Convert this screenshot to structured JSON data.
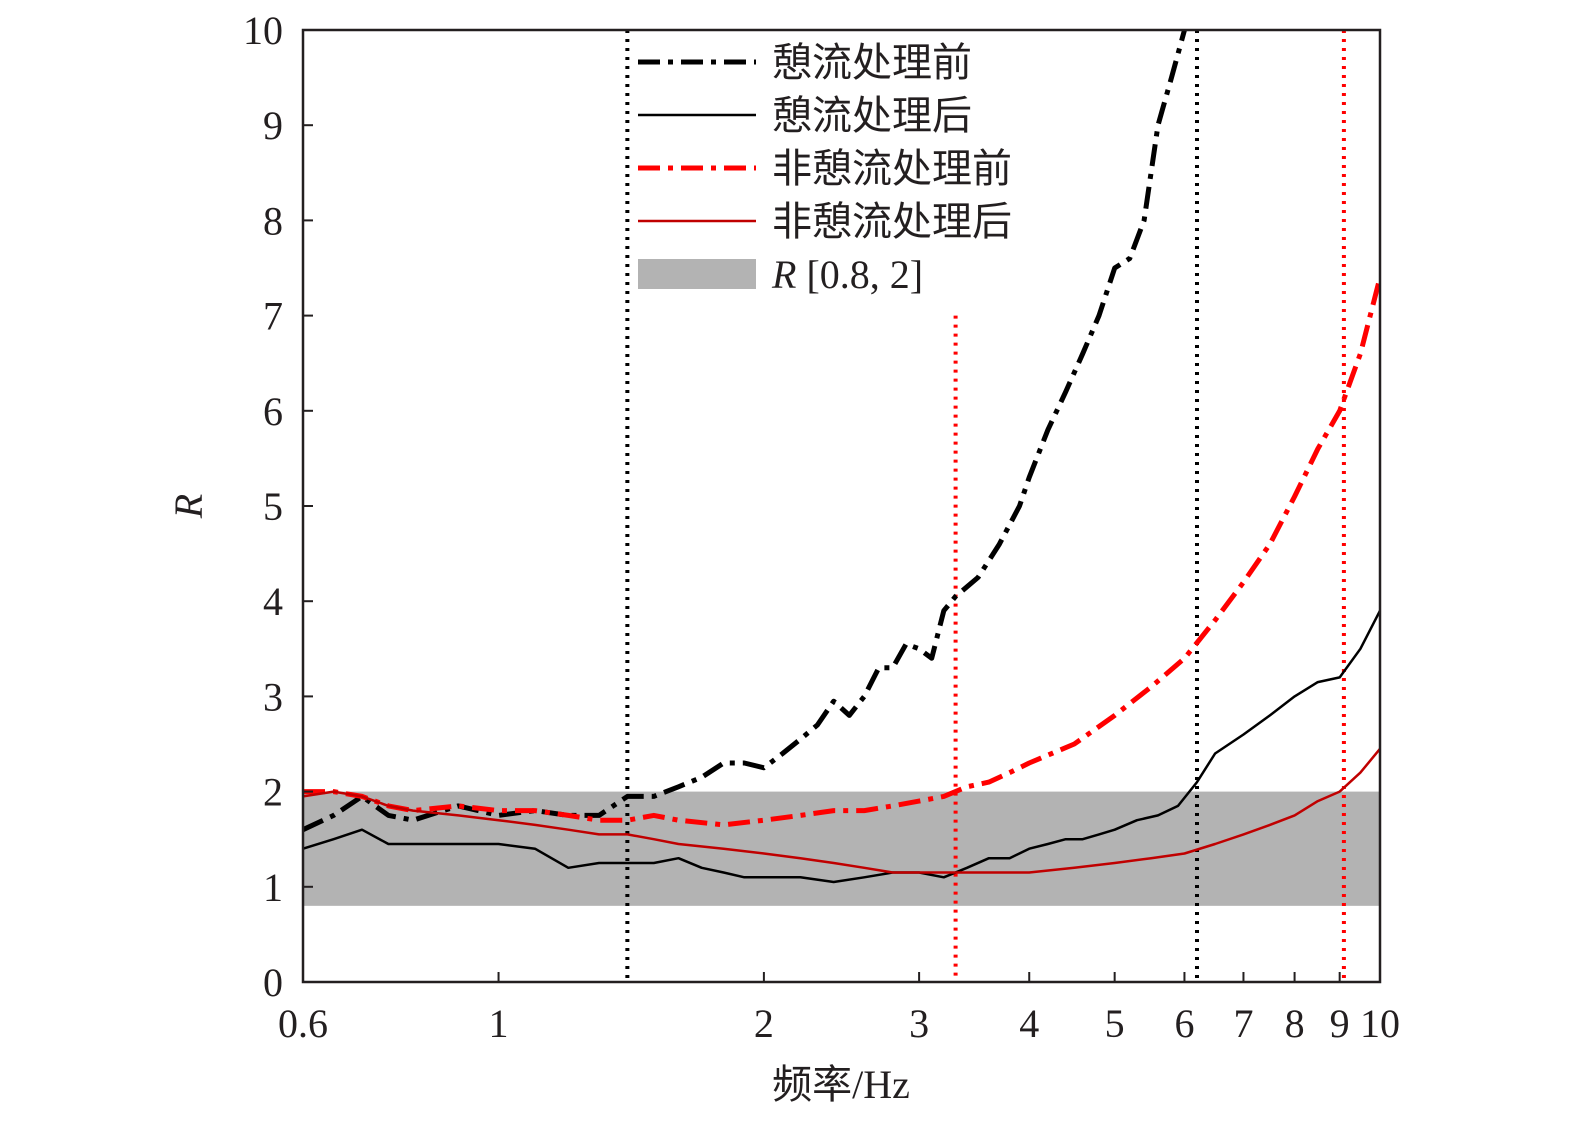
{
  "chart_data": {
    "type": "line",
    "xlabel": "频率/Hz",
    "ylabel": "R",
    "xscale": "log",
    "xlim": [
      0.6,
      10
    ],
    "ylim": [
      0,
      10
    ],
    "xticks": [
      0.6,
      1,
      2,
      3,
      4,
      5,
      6,
      7,
      8,
      9,
      10
    ],
    "xtick_labels": [
      "0.6",
      "1",
      "2",
      "3",
      "4",
      "5",
      "6",
      "7",
      "8",
      "9",
      "10"
    ],
    "yticks": [
      0,
      1,
      2,
      3,
      4,
      5,
      6,
      7,
      8,
      9,
      10
    ],
    "ytick_labels": [
      "0",
      "1",
      "2",
      "3",
      "4",
      "5",
      "6",
      "7",
      "8",
      "9",
      "10"
    ],
    "band": {
      "label_prefix": "R",
      "label_suffix": " [0.8, 2]",
      "y0": 0.8,
      "y1": 2,
      "color": "#b3b3b3"
    },
    "vlines": [
      {
        "x": 1.4,
        "color": "#000000",
        "style": "dotted"
      },
      {
        "x": 6.2,
        "color": "#000000",
        "style": "dotted"
      },
      {
        "x": 3.3,
        "color": "#ff0000",
        "style": "dotted",
        "ytop": 7.0
      },
      {
        "x": 9.1,
        "color": "#ff0000",
        "style": "dotted"
      }
    ],
    "series": [
      {
        "name": "憩流处理前",
        "color": "#000000",
        "style": "dashdot",
        "x": [
          0.6,
          0.65,
          0.7,
          0.75,
          0.8,
          0.9,
          1.0,
          1.1,
          1.2,
          1.3,
          1.4,
          1.5,
          1.6,
          1.7,
          1.8,
          1.9,
          2.0,
          2.1,
          2.2,
          2.3,
          2.4,
          2.5,
          2.6,
          2.7,
          2.8,
          2.9,
          3.0,
          3.1,
          3.2,
          3.3,
          3.5,
          3.7,
          3.9,
          4.0,
          4.2,
          4.4,
          4.6,
          4.8,
          5.0,
          5.2,
          5.4,
          5.6,
          5.8,
          6.0
        ],
        "y": [
          1.6,
          1.75,
          1.95,
          1.75,
          1.7,
          1.85,
          1.75,
          1.8,
          1.75,
          1.75,
          1.95,
          1.95,
          2.05,
          2.15,
          2.3,
          2.3,
          2.25,
          2.4,
          2.55,
          2.7,
          2.95,
          2.8,
          3.0,
          3.3,
          3.3,
          3.55,
          3.5,
          3.4,
          3.9,
          4.05,
          4.25,
          4.6,
          5.0,
          5.3,
          5.8,
          6.2,
          6.6,
          7.0,
          7.5,
          7.6,
          8.0,
          9.0,
          9.5,
          10.0
        ]
      },
      {
        "name": "憩流处理后",
        "color": "#000000",
        "style": "solid",
        "x": [
          0.6,
          0.65,
          0.7,
          0.75,
          0.8,
          0.9,
          1.0,
          1.1,
          1.2,
          1.3,
          1.4,
          1.5,
          1.6,
          1.7,
          1.8,
          1.9,
          2.0,
          2.2,
          2.4,
          2.6,
          2.8,
          3.0,
          3.2,
          3.4,
          3.6,
          3.8,
          4.0,
          4.2,
          4.4,
          4.6,
          4.8,
          5.0,
          5.3,
          5.6,
          5.9,
          6.2,
          6.5,
          7.0,
          7.5,
          8.0,
          8.5,
          9.0,
          9.5,
          10.0
        ],
        "y": [
          1.4,
          1.5,
          1.6,
          1.45,
          1.45,
          1.45,
          1.45,
          1.4,
          1.2,
          1.25,
          1.25,
          1.25,
          1.3,
          1.2,
          1.15,
          1.1,
          1.1,
          1.1,
          1.05,
          1.1,
          1.15,
          1.15,
          1.1,
          1.2,
          1.3,
          1.3,
          1.4,
          1.45,
          1.5,
          1.5,
          1.55,
          1.6,
          1.7,
          1.75,
          1.85,
          2.1,
          2.4,
          2.6,
          2.8,
          3.0,
          3.15,
          3.2,
          3.5,
          3.9
        ]
      },
      {
        "name": "非憩流处理前",
        "color": "#ff0000",
        "style": "dashdot",
        "x": [
          0.6,
          0.65,
          0.7,
          0.75,
          0.8,
          0.9,
          1.0,
          1.1,
          1.2,
          1.3,
          1.4,
          1.5,
          1.6,
          1.8,
          2.0,
          2.2,
          2.4,
          2.6,
          2.8,
          3.0,
          3.2,
          3.4,
          3.6,
          3.8,
          4.0,
          4.5,
          5.0,
          5.5,
          6.0,
          6.5,
          7.0,
          7.5,
          8.0,
          8.5,
          9.0,
          9.5,
          10.0
        ],
        "y": [
          2.0,
          2.0,
          1.95,
          1.85,
          1.8,
          1.85,
          1.8,
          1.8,
          1.75,
          1.7,
          1.7,
          1.75,
          1.7,
          1.65,
          1.7,
          1.75,
          1.8,
          1.8,
          1.85,
          1.9,
          1.95,
          2.05,
          2.1,
          2.2,
          2.3,
          2.5,
          2.8,
          3.1,
          3.4,
          3.8,
          4.2,
          4.6,
          5.1,
          5.6,
          6.0,
          6.6,
          7.4
        ]
      },
      {
        "name": "非憩流处理后",
        "color": "#c00000",
        "style": "solid",
        "x": [
          0.6,
          0.65,
          0.7,
          0.75,
          0.8,
          0.9,
          1.0,
          1.1,
          1.2,
          1.3,
          1.4,
          1.5,
          1.6,
          1.8,
          2.0,
          2.2,
          2.4,
          2.6,
          2.8,
          3.0,
          3.2,
          3.4,
          3.6,
          3.8,
          4.0,
          4.5,
          5.0,
          5.5,
          6.0,
          6.5,
          7.0,
          7.5,
          8.0,
          8.5,
          9.0,
          9.5,
          10.0
        ],
        "y": [
          1.95,
          2.0,
          1.95,
          1.85,
          1.8,
          1.75,
          1.7,
          1.65,
          1.6,
          1.55,
          1.55,
          1.5,
          1.45,
          1.4,
          1.35,
          1.3,
          1.25,
          1.2,
          1.15,
          1.15,
          1.15,
          1.15,
          1.15,
          1.15,
          1.15,
          1.2,
          1.25,
          1.3,
          1.35,
          1.45,
          1.55,
          1.65,
          1.75,
          1.9,
          2.0,
          2.2,
          2.45
        ]
      }
    ],
    "legend_position": "top-center"
  }
}
